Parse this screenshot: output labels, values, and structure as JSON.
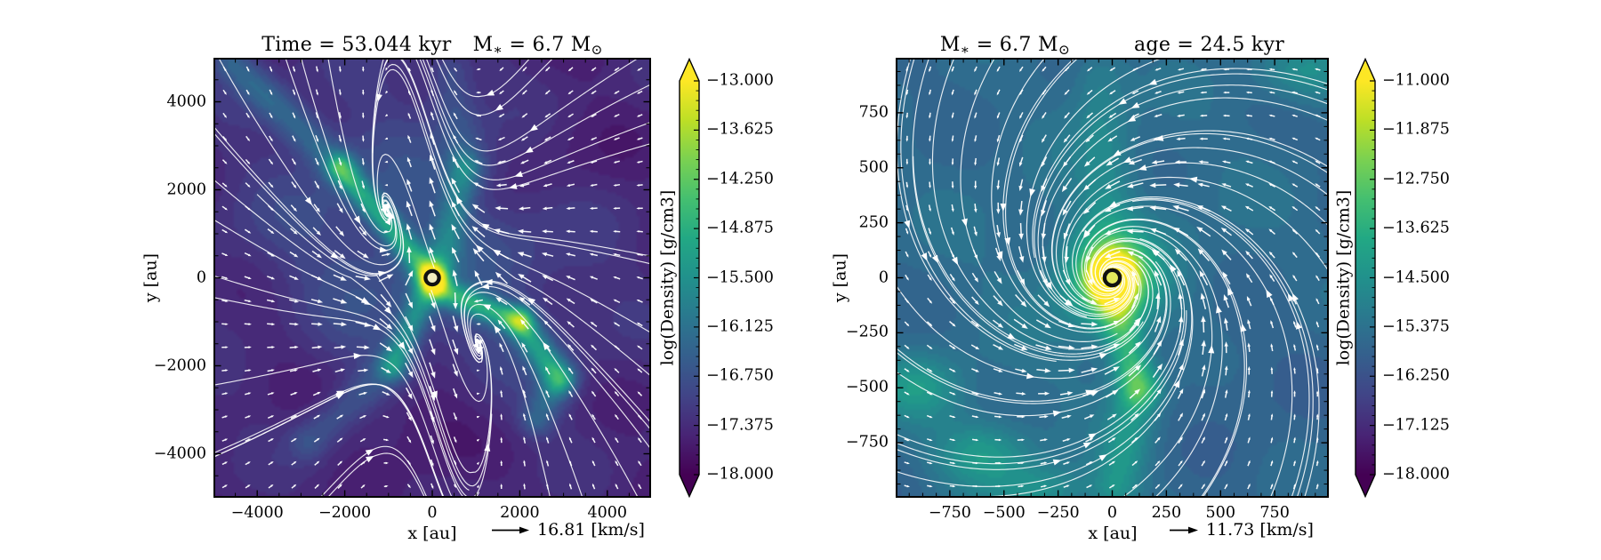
{
  "figure": {
    "background": "#ffffff",
    "axis_color": "#000000",
    "stream_color": "#ffffff",
    "marker_edge_color": "#111111",
    "marker_face_left": "#f2edbe",
    "marker_face_right": "#e4e95d",
    "colormap_name": "viridis",
    "colormap_stops": [
      "#440154",
      "#482475",
      "#414487",
      "#355f8d",
      "#2a788e",
      "#21918c",
      "#22a884",
      "#44bf70",
      "#7ad151",
      "#bddf26",
      "#fde725"
    ]
  },
  "chart_data": [
    {
      "type": "heatmap",
      "panel": "left",
      "title": "Time = 53.044 kyr   M∗ = 6.7 M⊙",
      "title_parts": {
        "prefix": "Time = 53.044 kyr",
        "mass_m": "M",
        "mass_sub": "∗",
        "mass_eq": " = 6.7 M",
        "mass_sun": "⊙",
        "suffix": ""
      },
      "xlabel": "x [au]",
      "ylabel": "y [au]",
      "xlim": [
        -5000,
        5000
      ],
      "ylim": [
        -5000,
        5000
      ],
      "xtick_values": [
        -4000,
        -2000,
        0,
        2000,
        4000
      ],
      "xtick_labels": [
        "−4000",
        "−2000",
        "0",
        "2000",
        "4000"
      ],
      "ytick_values": [
        4000,
        2000,
        0,
        -2000,
        -4000
      ],
      "ytick_labels": [
        "4000",
        "2000",
        "0",
        "−2000",
        "−4000"
      ],
      "minor_tick_step": 500,
      "colorbar": {
        "label": "log(Density) [g/cm3]",
        "vmin": -18.0,
        "vmax": -13.0,
        "tick_values": [
          -13.0,
          -13.625,
          -14.25,
          -14.875,
          -15.5,
          -16.125,
          -16.75,
          -17.375,
          -18.0
        ],
        "tick_labels": [
          "−13.000",
          "−13.625",
          "−14.250",
          "−14.875",
          "−15.500",
          "−16.125",
          "−16.750",
          "−17.375",
          "−18.000"
        ],
        "extend": "both"
      },
      "quiver_key": {
        "speed": 16.81,
        "label": "16.81 [km/s]"
      },
      "marker": {
        "x": 0,
        "y": 0
      }
    },
    {
      "type": "heatmap",
      "panel": "right",
      "title": "M∗ = 6.7 M⊙   age = 24.5 kyr",
      "title_parts": {
        "prefix": "",
        "mass_m": "M",
        "mass_sub": "∗",
        "mass_eq": " = 6.7 M",
        "mass_sun": "⊙",
        "suffix": "age = 24.5 kyr"
      },
      "xlabel": "x [au]",
      "ylabel": "y [au]",
      "xlim": [
        -1000,
        1000
      ],
      "ylim": [
        -1000,
        1000
      ],
      "xtick_values": [
        -750,
        -500,
        -250,
        0,
        250,
        500,
        750
      ],
      "xtick_labels": [
        "−750",
        "−500",
        "−250",
        "0",
        "250",
        "500",
        "750"
      ],
      "ytick_values": [
        750,
        500,
        250,
        0,
        -250,
        -500,
        -750
      ],
      "ytick_labels": [
        "750",
        "500",
        "250",
        "0",
        "−250",
        "−500",
        "−750"
      ],
      "minor_tick_step": 62.5,
      "colorbar": {
        "label": "log(Density) [g/cm3]",
        "vmin": -18.0,
        "vmax": -11.0,
        "tick_values": [
          -11.0,
          -11.875,
          -12.75,
          -13.625,
          -14.5,
          -15.375,
          -16.25,
          -17.125,
          -18.0
        ],
        "tick_labels": [
          "−11.000",
          "−11.875",
          "−12.750",
          "−13.625",
          "−14.500",
          "−15.375",
          "−16.250",
          "−17.125",
          "−18.000"
        ],
        "extend": "both"
      },
      "quiver_key": {
        "speed": 11.73,
        "label": "11.73 [km/s]"
      },
      "marker": {
        "x": 0,
        "y": 0
      }
    }
  ]
}
